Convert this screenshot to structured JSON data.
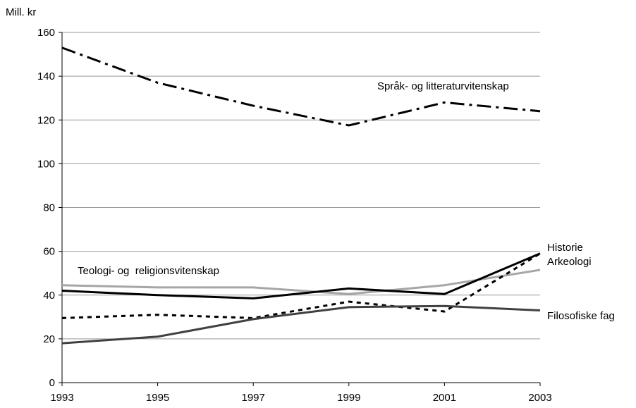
{
  "chart_data": {
    "type": "line",
    "y_axis_label": "Mill. kr",
    "x": [
      1993,
      1995,
      1997,
      1999,
      2001,
      2003
    ],
    "xlim": [
      1993,
      2003
    ],
    "xticks": [
      1993,
      1995,
      1997,
      1999,
      2001,
      2003
    ],
    "ylim": [
      0,
      160
    ],
    "yticks": [
      0,
      20,
      40,
      60,
      80,
      100,
      120,
      140,
      160
    ],
    "grid": true,
    "series": [
      {
        "name": "Språk- og litteraturvitenskap",
        "color": "#000000",
        "style": "dash-dot",
        "values": [
          153,
          137,
          126.5,
          117.5,
          128,
          124
        ]
      },
      {
        "name": "Teologi- og  religionsvitenskap",
        "color": "#a6a6a6",
        "style": "solid",
        "values": [
          44.5,
          43.5,
          43.5,
          40.5,
          44.5,
          51.5
        ]
      },
      {
        "name": "Historie",
        "color": "#000000",
        "style": "solid",
        "values": [
          42,
          40,
          38.5,
          43,
          40.5,
          59
        ]
      },
      {
        "name": "Arkeologi",
        "color": "#000000",
        "style": "dotted",
        "values": [
          29.5,
          31,
          29.5,
          37,
          32.5,
          59
        ]
      },
      {
        "name": "Filosofiske fag",
        "color": "#404040",
        "style": "solid",
        "values": [
          18,
          21,
          29,
          34.5,
          35,
          33
        ]
      }
    ]
  }
}
